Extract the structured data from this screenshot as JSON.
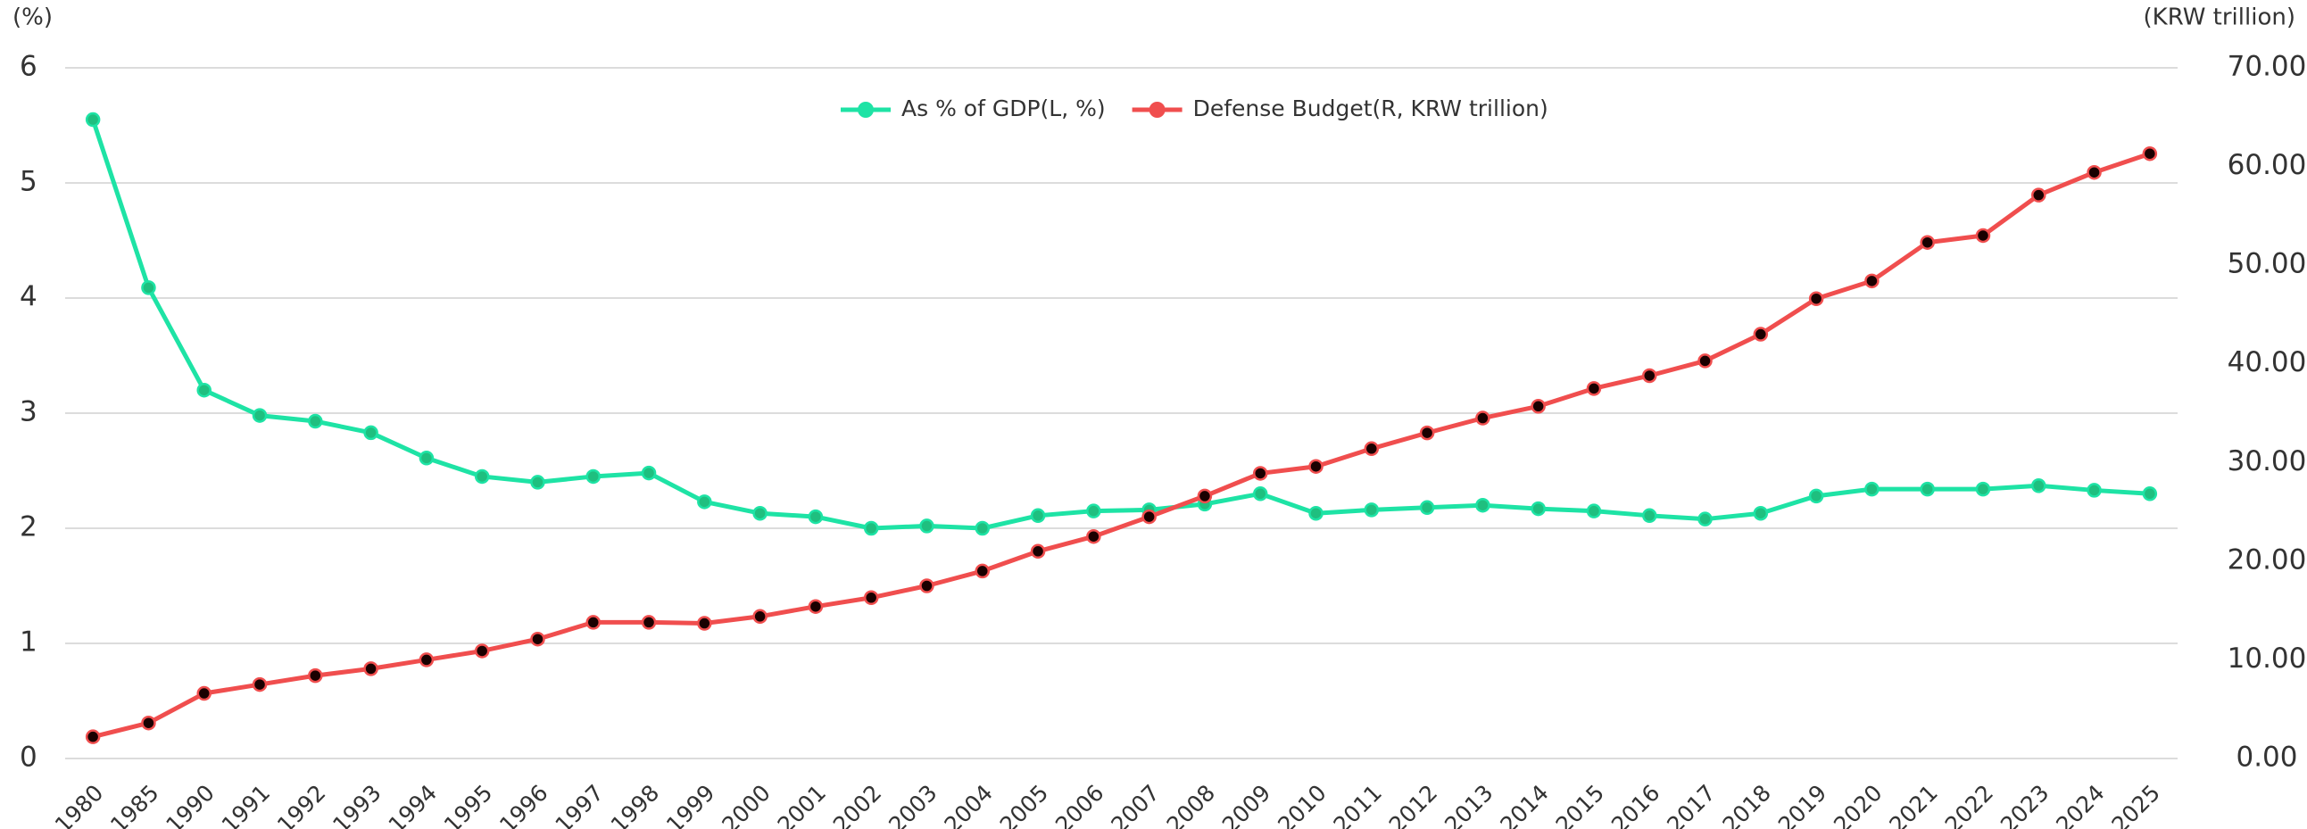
{
  "chart_data": {
    "type": "line",
    "y_label": "(%)",
    "y2_label": "(KRW trillion)",
    "categories": [
      "1980",
      "1985",
      "1990",
      "1991",
      "1992",
      "1993",
      "1994",
      "1995",
      "1996",
      "1997",
      "1998",
      "1999",
      "2000",
      "2001",
      "2002",
      "2003",
      "2004",
      "2005",
      "2006",
      "2007",
      "2008",
      "2009",
      "2010",
      "2011",
      "2012",
      "2013",
      "2014",
      "2015",
      "2016",
      "2017",
      "2018",
      "2019",
      "2020",
      "2021",
      "2022",
      "2023",
      "2024",
      "2025"
    ],
    "series": [
      {
        "name": "As % of GDP(L, %)",
        "color": "#1ee3a5",
        "marker_color": "#1fbf7f",
        "axis": "y",
        "values": [
          5.55,
          4.09,
          3.2,
          2.98,
          2.93,
          2.83,
          2.61,
          2.45,
          2.4,
          2.45,
          2.48,
          2.23,
          2.13,
          2.1,
          2.0,
          2.02,
          2.0,
          2.11,
          2.15,
          2.16,
          2.21,
          2.3,
          2.13,
          2.16,
          2.18,
          2.2,
          2.17,
          2.15,
          2.11,
          2.08,
          2.13,
          2.28,
          2.34,
          2.34,
          2.34,
          2.37,
          2.33,
          2.3
        ]
      },
      {
        "name": "Defense Budget(R, KRW trillion)",
        "color": "#f04e4e",
        "marker_color": "#1a0000",
        "axis": "y2",
        "values": [
          2.2,
          3.6,
          6.6,
          7.5,
          8.4,
          9.1,
          10.0,
          10.9,
          12.1,
          13.8,
          13.8,
          13.7,
          14.4,
          15.4,
          16.3,
          17.5,
          19.0,
          21.0,
          22.5,
          24.5,
          26.6,
          28.9,
          29.6,
          31.4,
          33.0,
          34.5,
          35.7,
          37.5,
          38.8,
          40.3,
          43.0,
          46.6,
          48.4,
          52.3,
          53.0,
          57.1,
          59.4,
          61.3
        ]
      }
    ],
    "ylim": [
      0,
      6
    ],
    "yticks": [
      0,
      1,
      2,
      3,
      4,
      5,
      6
    ],
    "y2lim": [
      0,
      70
    ],
    "y2ticks": [
      {
        "value": 0,
        "label": "0.00"
      },
      {
        "value": 10,
        "label": "10.00"
      },
      {
        "value": 20,
        "label": "20.00"
      },
      {
        "value": 30,
        "label": "30.00"
      },
      {
        "value": 40,
        "label": "40.00"
      },
      {
        "value": 50,
        "label": "50.00"
      },
      {
        "value": 60,
        "label": "60.00"
      },
      {
        "value": 70,
        "label": "70.00"
      }
    ],
    "grid": true,
    "legend": "top"
  }
}
